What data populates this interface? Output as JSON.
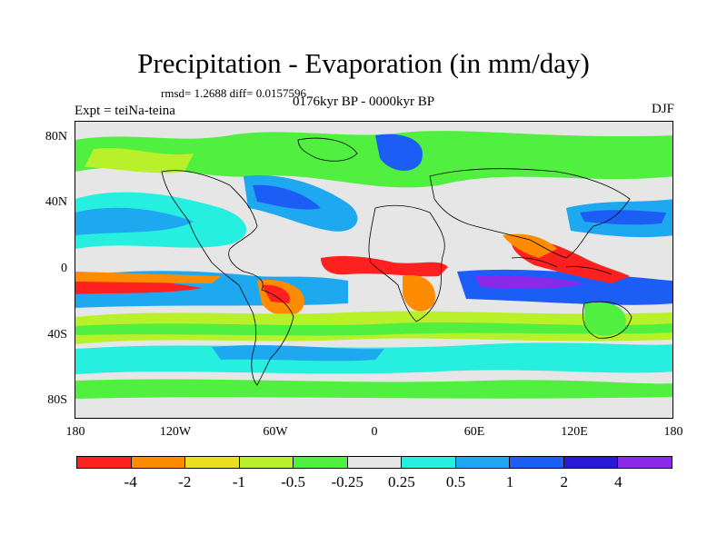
{
  "title": "Precipitation - Evaporation (in mm/day)",
  "stats": "rmsd= 1.2688 diff= 0.0157596",
  "experiment": "Expt = teiNa-teina",
  "period": "0176kyr BP - 0000kyr BP",
  "season": "DJF",
  "lat_ticks": [
    "80N",
    "40N",
    "0",
    "40S",
    "80S"
  ],
  "lon_ticks": [
    "180",
    "120W",
    "60W",
    "0",
    "60E",
    "120E",
    "180"
  ],
  "colorbar": {
    "colors": [
      "#ff2020",
      "#ff8c00",
      "#e8e020",
      "#b8f02a",
      "#50ef40",
      "#e6e6e6",
      "#27efe0",
      "#1ea8f0",
      "#1c5ef5",
      "#2a18d8",
      "#8a2ae8"
    ],
    "labels": [
      "-4",
      "-2",
      "-1",
      "-0.5",
      "-0.25",
      "0.25",
      "0.5",
      "1",
      "2",
      "4"
    ]
  }
}
